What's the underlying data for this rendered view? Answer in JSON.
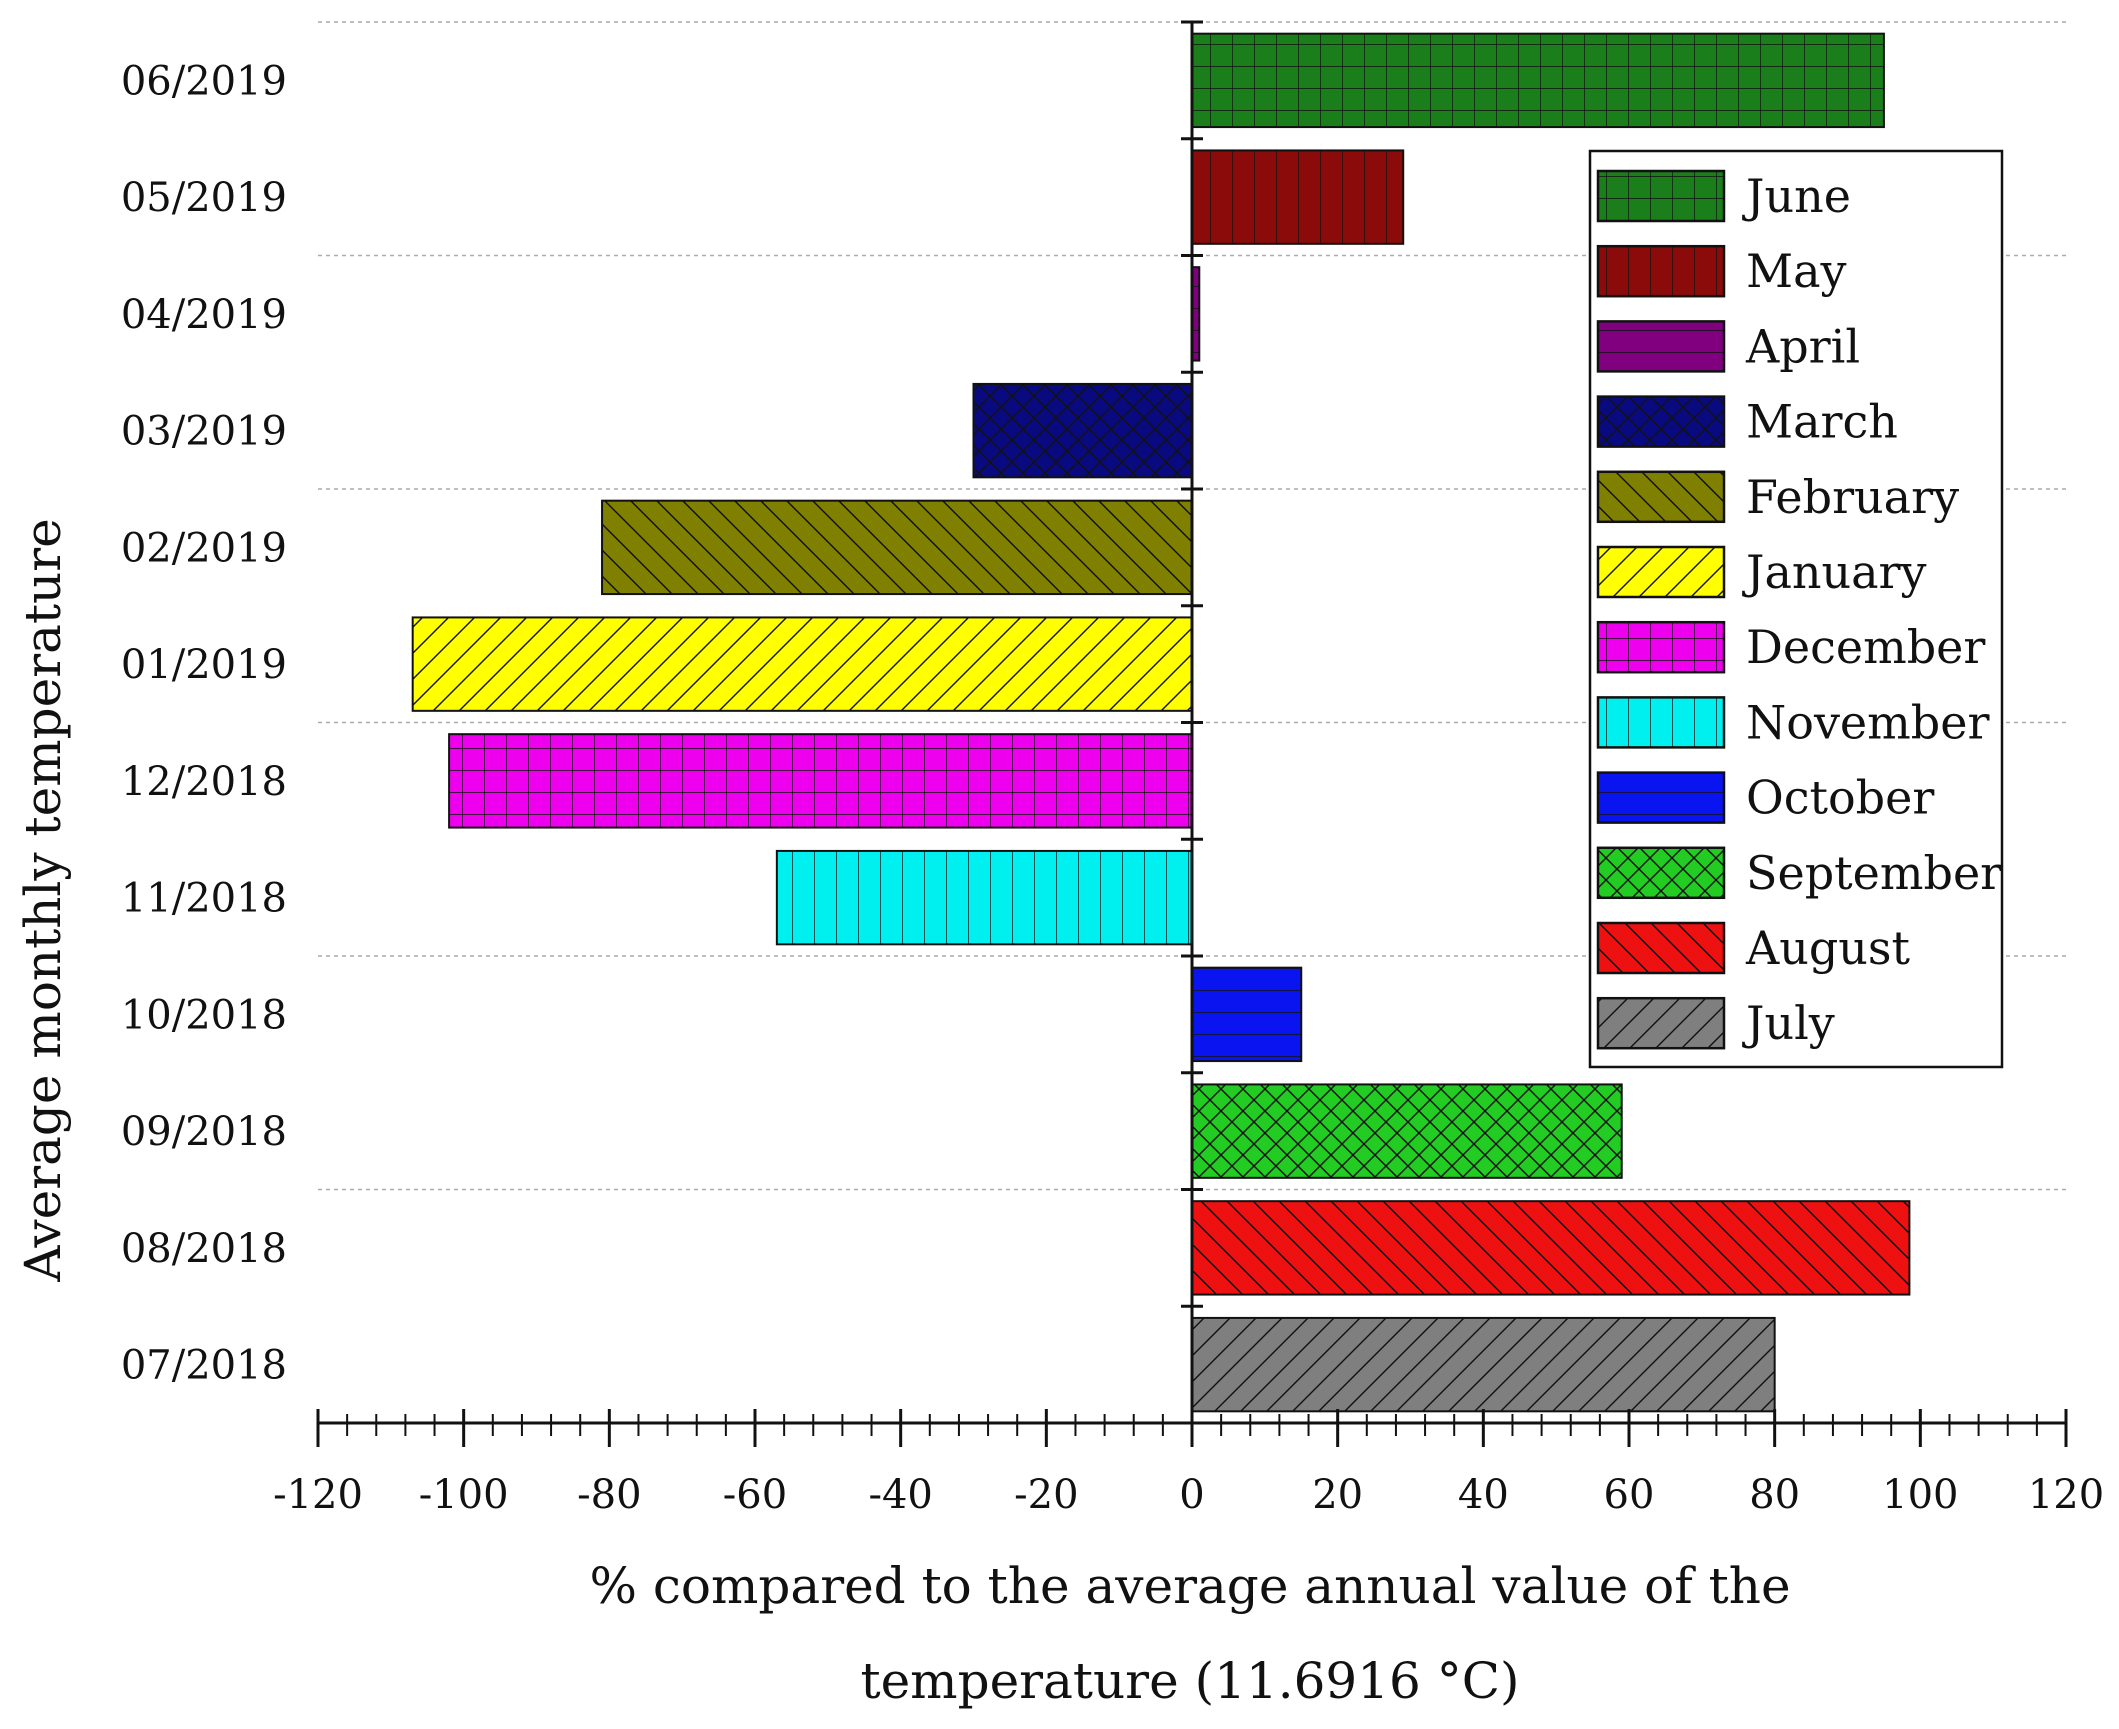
{
  "chart_data": {
    "type": "bar",
    "orientation": "horizontal",
    "title": "",
    "xlabel_lines": [
      "% compared to the average annual value of the",
      "temperature (11.6916 °C)"
    ],
    "ylabel": "Average monthly temperature",
    "xlim": [
      -120,
      120
    ],
    "xticks": [
      -120,
      -100,
      -80,
      -60,
      -40,
      -20,
      0,
      20,
      40,
      60,
      80,
      100,
      120
    ],
    "xtick_labels": [
      "-120",
      "-100",
      "-80",
      "-60",
      "-40",
      "-20",
      "0",
      "20",
      "40",
      "60",
      "80",
      "100",
      "120"
    ],
    "grid": "dashed horizontal",
    "legend_position": "top-right",
    "bars": [
      {
        "category": "06/2019",
        "month": "June",
        "value": 95,
        "color": "#1a7f1a",
        "pattern": "grid"
      },
      {
        "category": "05/2019",
        "month": "May",
        "value": 29,
        "color": "#8b0a0a",
        "pattern": "vertical"
      },
      {
        "category": "04/2019",
        "month": "April",
        "value": 1,
        "color": "#800080",
        "pattern": "horizontal"
      },
      {
        "category": "03/2019",
        "month": "March",
        "value": -30,
        "color": "#0a0a80",
        "pattern": "crosshatch"
      },
      {
        "category": "02/2019",
        "month": "February",
        "value": -81,
        "color": "#808000",
        "pattern": "back-diagonal"
      },
      {
        "category": "01/2019",
        "month": "January",
        "value": -107,
        "color": "#ffff00",
        "pattern": "diagonal"
      },
      {
        "category": "12/2018",
        "month": "December",
        "value": -102,
        "color": "#ee00ee",
        "pattern": "grid"
      },
      {
        "category": "11/2018",
        "month": "November",
        "value": -57,
        "color": "#00f0f0",
        "pattern": "vertical"
      },
      {
        "category": "10/2018",
        "month": "October",
        "value": 15,
        "color": "#0a14f0",
        "pattern": "horizontal"
      },
      {
        "category": "09/2018",
        "month": "September",
        "value": 59,
        "color": "#22cc22",
        "pattern": "crosshatch"
      },
      {
        "category": "08/2018",
        "month": "August",
        "value": 98.5,
        "color": "#ee1111",
        "pattern": "back-diagonal"
      },
      {
        "category": "07/2018",
        "month": "July",
        "value": 80,
        "color": "#7f7f7f",
        "pattern": "diagonal"
      }
    ]
  }
}
